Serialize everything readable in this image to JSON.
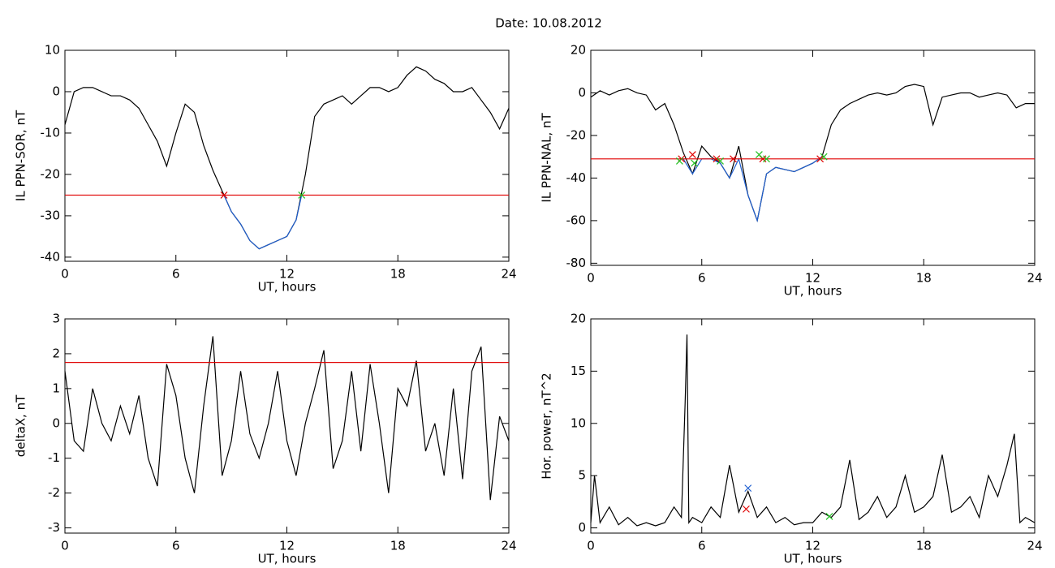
{
  "title": "Date:  10.08.2012",
  "chart_data": [
    {
      "type": "line",
      "ylabel": "IL PPN-SOR, nT",
      "xlabel": "UT, hours",
      "xlim": [
        0,
        24
      ],
      "xticks": [
        0,
        6,
        12,
        18,
        24
      ],
      "ylim": [
        -41,
        10
      ],
      "yticks": [
        -40,
        -30,
        -20,
        -10,
        0,
        10
      ],
      "threshold": -25,
      "threshold_color": "#e00000",
      "series": [
        {
          "color": "#000000",
          "x": [
            0,
            0.5,
            1,
            1.5,
            2,
            2.5,
            3,
            3.5,
            4,
            4.5,
            5,
            5.5,
            6,
            6.5,
            7,
            7.5,
            8,
            8.5,
            9,
            9.5,
            10,
            10.5,
            11,
            11.5,
            12,
            12.5,
            13,
            13.5,
            14,
            14.5,
            15,
            15.5,
            16,
            16.5,
            17,
            17.5,
            18,
            18.5,
            19,
            19.5,
            20,
            20.5,
            21,
            21.5,
            22,
            22.5,
            23,
            23.5,
            24
          ],
          "values": [
            -8,
            0,
            1,
            1,
            0,
            -1,
            -1,
            -2,
            -4,
            -8,
            -12,
            -18,
            -10,
            -3,
            -5,
            -13,
            -19,
            -24,
            -29,
            -32,
            -36,
            -38,
            -37,
            -36,
            -35,
            -31,
            -20,
            -6,
            -3,
            -2,
            -1,
            -3,
            -1,
            1,
            1,
            0,
            1,
            4,
            6,
            5,
            3,
            2,
            0,
            0,
            1,
            -2,
            -5,
            -9,
            -4
          ]
        },
        {
          "color": "#1f5fd0",
          "x": [
            8.6,
            9,
            9.5,
            10,
            10.5,
            11,
            11.5,
            12,
            12.5,
            12.8
          ],
          "values": [
            -25,
            -29,
            -32,
            -36,
            -38,
            -37,
            -36,
            -35,
            -31,
            -25
          ]
        }
      ],
      "markers": [
        {
          "x": 8.6,
          "y": -25,
          "color": "#e00000"
        },
        {
          "x": 12.8,
          "y": -25,
          "color": "#20c020"
        }
      ]
    },
    {
      "type": "line",
      "ylabel": "IL PPN-NAL, nT",
      "xlabel": "UT, hours",
      "xlim": [
        0,
        24
      ],
      "xticks": [
        0,
        6,
        12,
        18,
        24
      ],
      "ylim": [
        -81,
        20
      ],
      "yticks": [
        -80,
        -60,
        -40,
        -20,
        0,
        20
      ],
      "threshold": -31,
      "threshold_color": "#e00000",
      "series": [
        {
          "color": "#000000",
          "x": [
            0,
            0.5,
            1,
            1.5,
            2,
            2.5,
            3,
            3.5,
            4,
            4.5,
            5,
            5.5,
            6,
            6.5,
            7,
            7.5,
            8,
            8.5,
            9,
            9.5,
            10,
            10.5,
            11,
            11.5,
            12,
            12.5,
            13,
            13.5,
            14,
            14.5,
            15,
            15.5,
            16,
            16.5,
            17,
            17.5,
            18,
            18.5,
            19,
            19.5,
            20,
            20.5,
            21,
            21.5,
            22,
            22.5,
            23,
            23.5,
            24
          ],
          "values": [
            -2,
            1,
            -1,
            1,
            2,
            0,
            -1,
            -8,
            -5,
            -15,
            -28,
            -38,
            -25,
            -30,
            -33,
            -40,
            -25,
            -48,
            -60,
            -38,
            -35,
            -36,
            -37,
            -35,
            -33,
            -30,
            -15,
            -8,
            -5,
            -3,
            -1,
            0,
            -1,
            0,
            3,
            4,
            3,
            -15,
            -2,
            -1,
            0,
            0,
            -2,
            -1,
            0,
            -1,
            -7,
            -5,
            -5
          ]
        },
        {
          "color": "#1f5fd0",
          "x": [
            4.8,
            5,
            5.5,
            6,
            6.5,
            7,
            7.5,
            8,
            8.5,
            9,
            9.5,
            10,
            10.5,
            11,
            11.5,
            12,
            12.5
          ],
          "values": [
            -31,
            -31,
            -38,
            -31,
            -31,
            -33,
            -40,
            -31,
            -48,
            -60,
            -38,
            -35,
            -36,
            -37,
            -35,
            -33,
            -30
          ]
        }
      ],
      "markers": [
        {
          "x": 4.9,
          "y": -31,
          "color": "#e00000"
        },
        {
          "x": 5.5,
          "y": -29,
          "color": "#e00000"
        },
        {
          "x": 6.8,
          "y": -31,
          "color": "#e00000"
        },
        {
          "x": 7.7,
          "y": -31,
          "color": "#e00000"
        },
        {
          "x": 9.3,
          "y": -31,
          "color": "#e00000"
        },
        {
          "x": 12.4,
          "y": -31,
          "color": "#e00000"
        },
        {
          "x": 4.8,
          "y": -32,
          "color": "#20c020"
        },
        {
          "x": 5.6,
          "y": -33,
          "color": "#20c020"
        },
        {
          "x": 7.0,
          "y": -32,
          "color": "#20c020"
        },
        {
          "x": 9.1,
          "y": -29,
          "color": "#20c020"
        },
        {
          "x": 9.5,
          "y": -31,
          "color": "#20c020"
        },
        {
          "x": 12.6,
          "y": -30,
          "color": "#20c020"
        }
      ]
    },
    {
      "type": "line",
      "ylabel": "deltaX, nT",
      "xlabel": "UT, hours",
      "xlim": [
        0,
        24
      ],
      "xticks": [
        0,
        6,
        12,
        18,
        24
      ],
      "ylim": [
        -3.15,
        3
      ],
      "yticks": [
        -3,
        -2,
        -1,
        0,
        1,
        2,
        3
      ],
      "threshold": 1.75,
      "threshold_color": "#e00000",
      "series": [
        {
          "color": "#000000",
          "x": [
            0,
            0.5,
            1,
            1.5,
            2,
            2.5,
            3,
            3.5,
            4,
            4.5,
            5,
            5.5,
            6,
            6.5,
            7,
            7.5,
            8,
            8.5,
            9,
            9.5,
            10,
            10.5,
            11,
            11.5,
            12,
            12.5,
            13,
            13.5,
            14,
            14.5,
            15,
            15.5,
            16,
            16.5,
            17,
            17.5,
            18,
            18.5,
            19,
            19.5,
            20,
            20.5,
            21,
            21.5,
            22,
            22.5,
            23,
            23.5,
            24
          ],
          "values": [
            1.5,
            -0.5,
            -0.8,
            1,
            0,
            -0.5,
            0.5,
            -0.3,
            0.8,
            -1,
            -1.8,
            1.7,
            0.8,
            -1,
            -2,
            0.5,
            2.5,
            -1.5,
            -0.5,
            1.5,
            -0.3,
            -1,
            0,
            1.5,
            -0.5,
            -1.5,
            0,
            1,
            2.1,
            -1.3,
            -0.5,
            1.5,
            -0.8,
            1.7,
            0,
            -2,
            1,
            0.5,
            1.8,
            -0.8,
            0,
            -1.5,
            1,
            -1.6,
            1.5,
            2.2,
            -2.2,
            0.2,
            -0.5
          ]
        }
      ],
      "markers": []
    },
    {
      "type": "line",
      "ylabel": "Hor. power, nT^2",
      "xlabel": "UT, hours",
      "xlim": [
        0,
        24
      ],
      "xticks": [
        0,
        6,
        12,
        18,
        24
      ],
      "ylim": [
        -0.5,
        20
      ],
      "yticks": [
        0,
        5,
        10,
        15,
        20
      ],
      "series": [
        {
          "color": "#000000",
          "x": [
            0,
            0.2,
            0.5,
            1,
            1.5,
            2,
            2.5,
            3,
            3.5,
            4,
            4.5,
            4.9,
            5.1,
            5.2,
            5.3,
            5.5,
            6,
            6.5,
            7,
            7.5,
            8,
            8.5,
            9,
            9.5,
            10,
            10.5,
            11,
            11.5,
            12,
            12.5,
            13,
            13.5,
            14,
            14.5,
            15,
            15.5,
            16,
            16.5,
            17,
            17.5,
            18,
            18.5,
            19,
            19.5,
            20,
            20.5,
            21,
            21.5,
            22,
            22.5,
            22.9,
            23.2,
            23.5,
            24
          ],
          "values": [
            0.5,
            5,
            0.5,
            2,
            0.3,
            1,
            0.2,
            0.5,
            0.2,
            0.5,
            2,
            1,
            12,
            18.5,
            0.5,
            1,
            0.5,
            2,
            1,
            6,
            1.5,
            3.5,
            1,
            2,
            0.5,
            1,
            0.3,
            0.5,
            0.5,
            1.5,
            1,
            2,
            6.5,
            0.8,
            1.5,
            3,
            1,
            2,
            5,
            1.5,
            2,
            3,
            7,
            1.5,
            2,
            3,
            1,
            5,
            3,
            6,
            9,
            0.5,
            1,
            0.5
          ]
        }
      ],
      "markers": [
        {
          "x": 8.5,
          "y": 3.8,
          "color": "#1f5fd0"
        },
        {
          "x": 8.4,
          "y": 1.8,
          "color": "#e00000"
        },
        {
          "x": 12.9,
          "y": 1.1,
          "color": "#20c020"
        }
      ]
    }
  ]
}
